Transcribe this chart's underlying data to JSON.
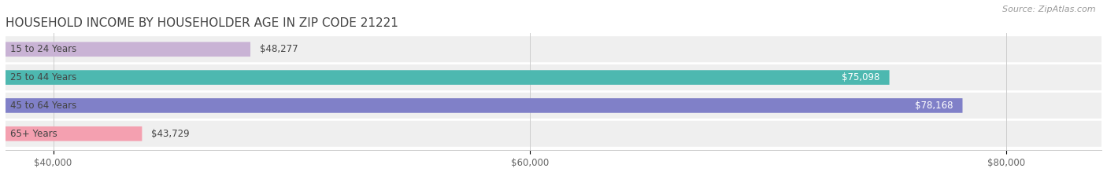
{
  "title": "HOUSEHOLD INCOME BY HOUSEHOLDER AGE IN ZIP CODE 21221",
  "source": "Source: ZipAtlas.com",
  "categories": [
    "15 to 24 Years",
    "25 to 44 Years",
    "45 to 64 Years",
    "65+ Years"
  ],
  "values": [
    48277,
    75098,
    78168,
    43729
  ],
  "bar_colors": [
    "#c9b3d5",
    "#4db8b0",
    "#8080c8",
    "#f4a0b0"
  ],
  "label_colors": [
    "#555555",
    "#ffffff",
    "#ffffff",
    "#555555"
  ],
  "xticks": [
    40000,
    60000,
    80000
  ],
  "xtick_labels": [
    "$40,000",
    "$60,000",
    "$80,000"
  ],
  "xmin": 38000,
  "xmax": 84000,
  "title_fontsize": 11,
  "source_fontsize": 8,
  "category_fontsize": 8.5,
  "value_fontsize": 8.5,
  "bar_height": 0.52,
  "figsize": [
    14.06,
    2.33
  ],
  "dpi": 100
}
